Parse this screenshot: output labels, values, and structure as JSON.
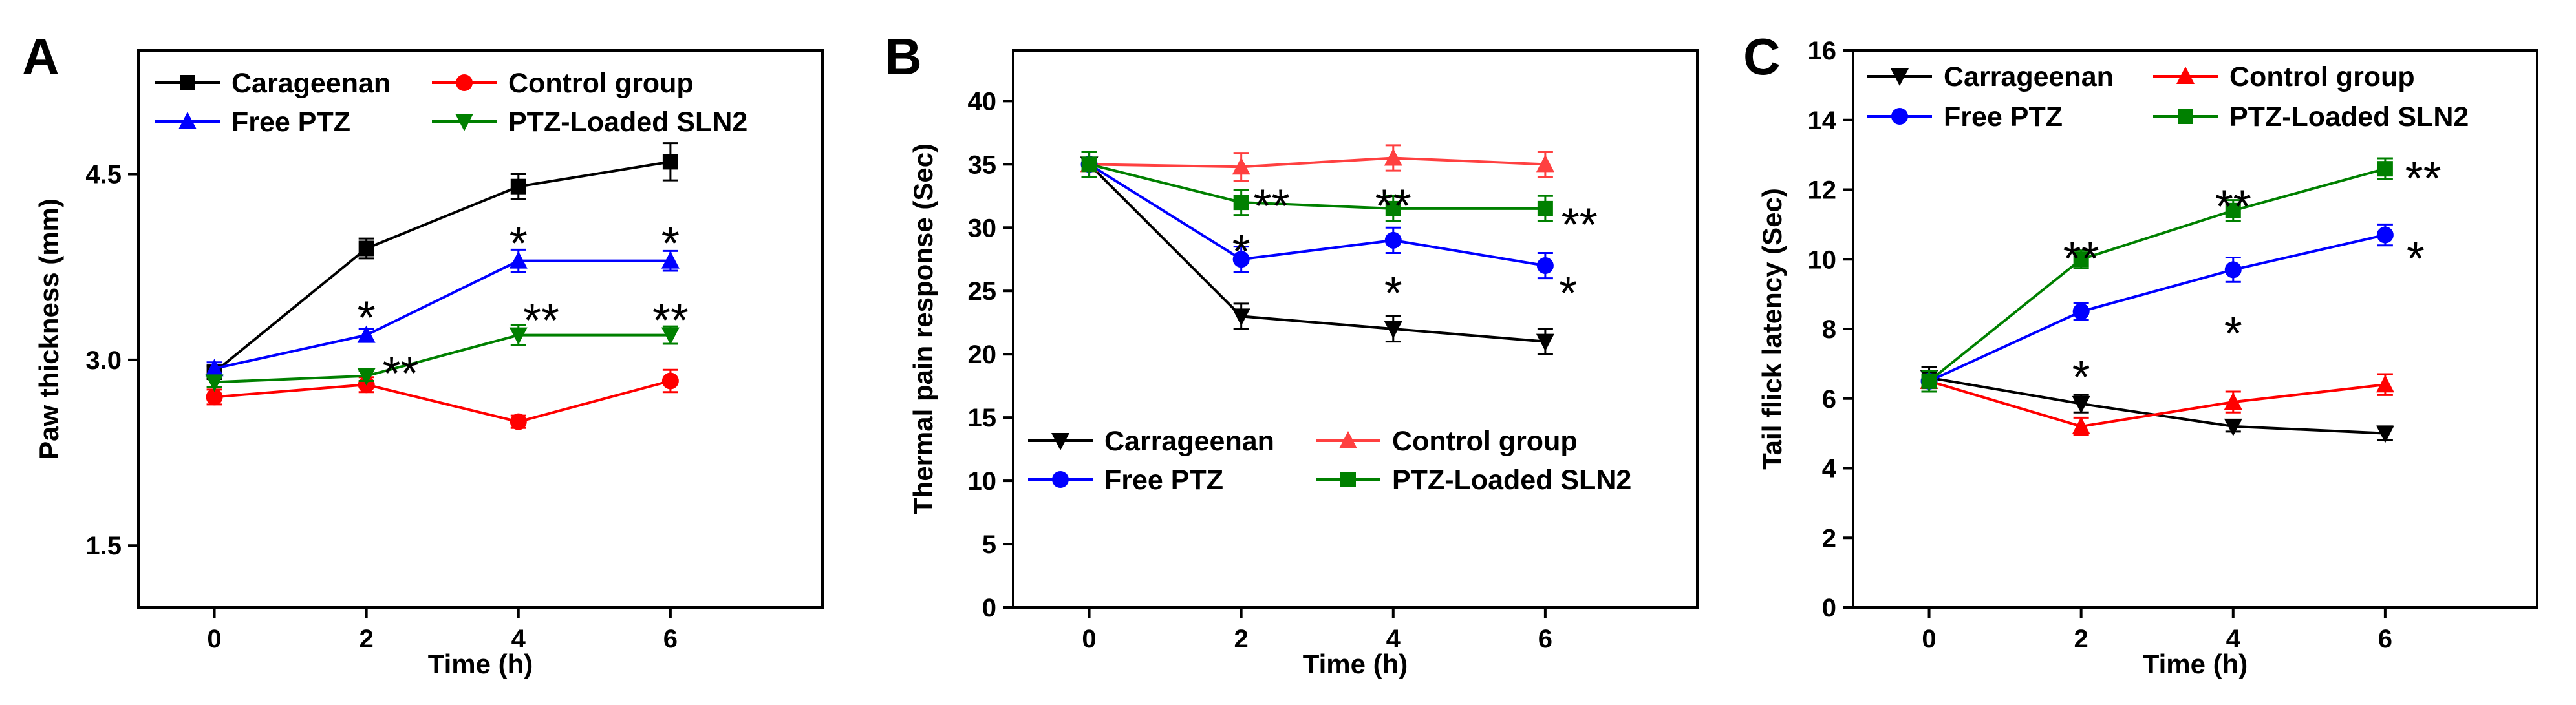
{
  "chart_data": [
    {
      "type": "line",
      "panel_letter": "A",
      "xlabel": "Time (h)",
      "ylabel": "Paw thickness (mm)",
      "x": [
        0,
        2,
        4,
        6
      ],
      "xlim": [
        -1,
        8
      ],
      "ylim": [
        1,
        5.5
      ],
      "xticks": [
        0,
        2,
        4,
        6
      ],
      "yticks": [
        1.5,
        3.0,
        4.5
      ],
      "ytick_labels": [
        "1.5",
        "3.0",
        "4.5"
      ],
      "legend_placement": "top",
      "series": [
        {
          "name": "Carageenan",
          "color": "#000000",
          "marker": "square",
          "values": [
            2.9,
            3.9,
            4.4,
            4.6
          ],
          "errors": [
            0.05,
            0.08,
            0.1,
            0.15
          ]
        },
        {
          "name": "Control group",
          "color": "#ff0000",
          "marker": "circle",
          "values": [
            2.7,
            2.8,
            2.5,
            2.83
          ],
          "errors": [
            0.06,
            0.06,
            0.05,
            0.09
          ]
        },
        {
          "name": "Free PTZ",
          "color": "#0000ff",
          "marker": "triangle-up",
          "values": [
            2.93,
            3.2,
            3.8,
            3.8
          ],
          "errors": [
            0.05,
            0.05,
            0.09,
            0.08
          ]
        },
        {
          "name": "PTZ-Loaded SLN2",
          "color": "#008000",
          "marker": "triangle-down",
          "values": [
            2.82,
            2.87,
            3.2,
            3.2
          ],
          "errors": [
            0.04,
            0.04,
            0.08,
            0.07
          ]
        }
      ],
      "annotations": [
        {
          "text": "*",
          "x": 2,
          "y": 3.42
        },
        {
          "text": "**",
          "x": 2.45,
          "y": 2.97
        },
        {
          "text": "*",
          "x": 4,
          "y": 4.02
        },
        {
          "text": "**",
          "x": 4.3,
          "y": 3.4
        },
        {
          "text": "*",
          "x": 6,
          "y": 4.02
        },
        {
          "text": "**",
          "x": 6,
          "y": 3.4
        }
      ]
    },
    {
      "type": "line",
      "panel_letter": "B",
      "xlabel": "Time (h)",
      "ylabel": "Thermal pain response (Sec)",
      "x": [
        0,
        2,
        4,
        6
      ],
      "xlim": [
        -1,
        8
      ],
      "ylim": [
        0,
        44
      ],
      "xticks": [
        0,
        2,
        4,
        6
      ],
      "yticks": [
        0,
        5,
        10,
        15,
        20,
        25,
        30,
        35,
        40
      ],
      "ytick_labels": [
        "0",
        "5",
        "10",
        "15",
        "20",
        "25",
        "30",
        "35",
        "40"
      ],
      "legend_placement": "bottom",
      "series": [
        {
          "name": "Carrageenan",
          "color": "#000000",
          "marker": "triangle-down",
          "values": [
            35,
            23,
            22,
            21
          ],
          "errors": [
            1.0,
            1.0,
            1.0,
            1.0
          ]
        },
        {
          "name": "Control group",
          "color": "#ff4040",
          "marker": "triangle-up",
          "values": [
            35,
            34.8,
            35.5,
            35
          ],
          "errors": [
            1.0,
            1.1,
            1.0,
            1.0
          ]
        },
        {
          "name": "Free PTZ",
          "color": "#0000ff",
          "marker": "circle",
          "values": [
            35,
            27.5,
            29,
            27
          ],
          "errors": [
            1.0,
            1.0,
            1.0,
            1.0
          ]
        },
        {
          "name": "PTZ-Loaded SLN2",
          "color": "#008000",
          "marker": "square",
          "values": [
            35,
            32,
            31.5,
            31.5
          ],
          "errors": [
            1.0,
            1.0,
            1.0,
            1.0
          ]
        }
      ],
      "annotations": [
        {
          "text": "*",
          "x": 2,
          "y": 28.9
        },
        {
          "text": "**",
          "x": 2.4,
          "y": 32.5
        },
        {
          "text": "**",
          "x": 4,
          "y": 32.5
        },
        {
          "text": "*",
          "x": 4,
          "y": 25.6
        },
        {
          "text": "**",
          "x": 6.45,
          "y": 31.0
        },
        {
          "text": "*",
          "x": 6.3,
          "y": 25.6
        }
      ]
    },
    {
      "type": "line",
      "panel_letter": "C",
      "xlabel": "Time (h)",
      "ylabel": "Tail  flick latency (Sec)",
      "x": [
        0,
        2,
        4,
        6
      ],
      "xlim": [
        -1,
        8
      ],
      "ylim": [
        0,
        16
      ],
      "xticks": [
        0,
        2,
        4,
        6
      ],
      "yticks": [
        0,
        2,
        4,
        6,
        8,
        10,
        12,
        14,
        16
      ],
      "ytick_labels": [
        "0",
        "2",
        "4",
        "6",
        "8",
        "10",
        "12",
        "14",
        "16"
      ],
      "legend_placement": "top",
      "series": [
        {
          "name": "Carrageenan",
          "color": "#000000",
          "marker": "triangle-down",
          "values": [
            6.6,
            5.85,
            5.2,
            5.0
          ],
          "errors": [
            0.3,
            0.25,
            0.15,
            0.2
          ]
        },
        {
          "name": "Control group",
          "color": "#ff0000",
          "marker": "triangle-up",
          "values": [
            6.5,
            5.2,
            5.9,
            6.4
          ],
          "errors": [
            0.3,
            0.25,
            0.3,
            0.3
          ]
        },
        {
          "name": "Free PTZ",
          "color": "#0000ff",
          "marker": "circle",
          "values": [
            6.5,
            8.5,
            9.7,
            10.7
          ],
          "errors": [
            0.3,
            0.25,
            0.35,
            0.3
          ]
        },
        {
          "name": "PTZ-Loaded SLN2",
          "color": "#008000",
          "marker": "square",
          "values": [
            6.5,
            10.0,
            11.4,
            12.6
          ],
          "errors": [
            0.3,
            0.25,
            0.3,
            0.3
          ]
        }
      ],
      "annotations": [
        {
          "text": "**",
          "x": 2,
          "y": 10.3
        },
        {
          "text": "*",
          "x": 2,
          "y": 6.9
        },
        {
          "text": "**",
          "x": 4,
          "y": 11.8
        },
        {
          "text": "*",
          "x": 4,
          "y": 8.15
        },
        {
          "text": "**",
          "x": 6.5,
          "y": 12.6
        },
        {
          "text": "*",
          "x": 6.4,
          "y": 10.3
        }
      ]
    }
  ]
}
